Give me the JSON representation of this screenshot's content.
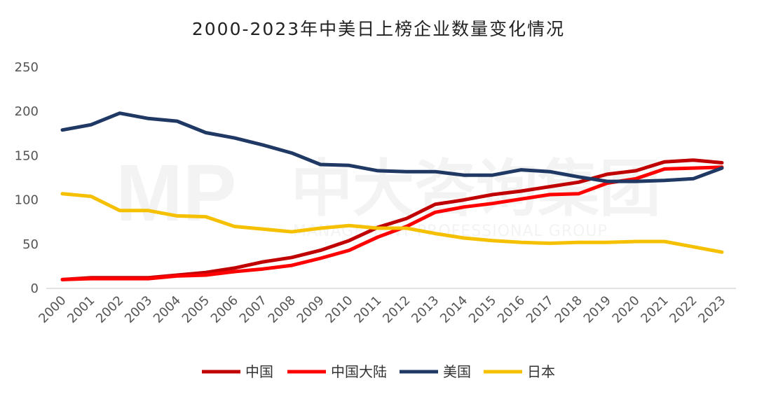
{
  "chart_data": {
    "type": "line",
    "title": "2000-2023年中美日上榜企业数量变化情况",
    "xlabel": "",
    "ylabel": "",
    "ylim": [
      0,
      250
    ],
    "yticks": [
      0,
      50,
      100,
      150,
      200,
      250
    ],
    "grid": false,
    "legend_position": "bottom",
    "x": [
      "2000",
      "2001",
      "2002",
      "2003",
      "2004",
      "2005",
      "2006",
      "2007",
      "2008",
      "2009",
      "2010",
      "2011",
      "2012",
      "2013",
      "2014",
      "2015",
      "2016",
      "2017",
      "2018",
      "2019",
      "2020",
      "2021",
      "2022",
      "2023"
    ],
    "series": [
      {
        "name": "中国",
        "color": "#c00000",
        "values": [
          10,
          12,
          12,
          12,
          15,
          18,
          23,
          30,
          35,
          43,
          54,
          69,
          79,
          95,
          100,
          106,
          110,
          115,
          120,
          129,
          133,
          143,
          145,
          142
        ]
      },
      {
        "name": "中国大陆",
        "color": "#ff0000",
        "values": [
          10,
          11,
          11,
          11,
          14,
          15,
          19,
          22,
          26,
          34,
          43,
          58,
          70,
          86,
          92,
          96,
          101,
          106,
          107,
          119,
          124,
          135,
          136,
          137
        ]
      },
      {
        "name": "美国",
        "color": "#1f3864",
        "values": [
          179,
          185,
          198,
          192,
          189,
          176,
          170,
          162,
          153,
          140,
          139,
          133,
          132,
          132,
          128,
          128,
          134,
          132,
          126,
          121,
          121,
          122,
          124,
          136
        ]
      },
      {
        "name": "日本",
        "color": "#f5c000",
        "values": [
          107,
          104,
          88,
          88,
          82,
          81,
          70,
          67,
          64,
          68,
          71,
          68,
          68,
          62,
          57,
          54,
          52,
          51,
          52,
          52,
          53,
          53,
          47,
          41
        ]
      }
    ]
  },
  "watermark": {
    "logo": "MP",
    "cn": "中大咨询集团",
    "en": "MANAGEMENT PROFESSIONAL GROUP"
  }
}
